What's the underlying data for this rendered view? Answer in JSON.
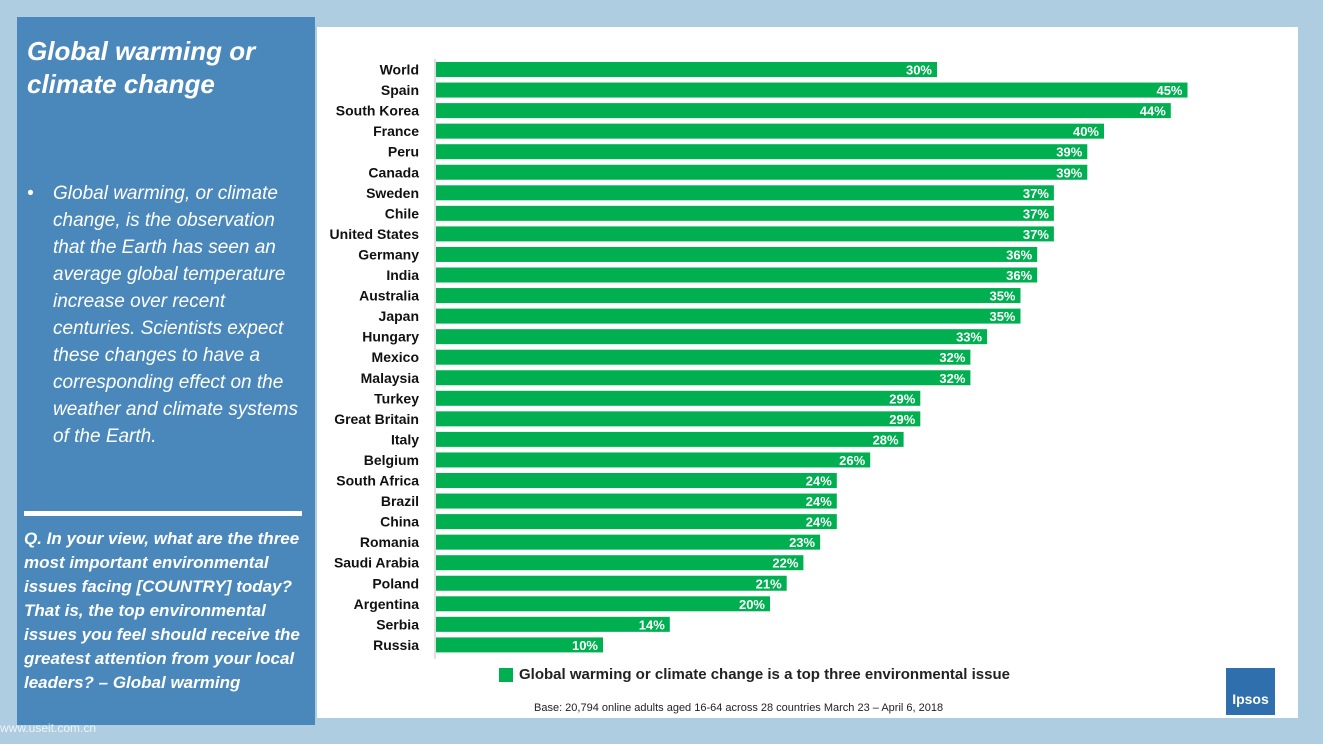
{
  "side": {
    "title": "Global warming or climate change",
    "bullet_symbol": "•",
    "bullet_text": "Global warming, or climate change, is the observation that the Earth has seen an average global temperature increase over recent centuries. Scientists expect these changes to have a corresponding effect on the weather and climate systems of the Earth.",
    "question": "Q. In your view, what are the three most important environmental issues facing [COUNTRY] today? That is, the top environmental issues you feel should receive the greatest attention from your local leaders? – Global warming"
  },
  "watermark": "www.useit.com.cn",
  "legend": {
    "label": "Global warming or climate change is a top three environmental issue"
  },
  "base_note": "Base: 20,794 online adults aged 16-64 across 28 countries  March 23 – April 6, 2018",
  "logo": {
    "text": "Ipsos"
  },
  "colors": {
    "bar": "#00b050",
    "side_panel": "#4a88bc",
    "background": "#aecde0"
  },
  "chart_data": {
    "type": "bar",
    "orientation": "horizontal",
    "categories": [
      "World",
      "Spain",
      "South Korea",
      "France",
      "Peru",
      "Canada",
      "Sweden",
      "Chile",
      "United States",
      "Germany",
      "India",
      "Australia",
      "Japan",
      "Hungary",
      "Mexico",
      "Malaysia",
      "Turkey",
      "Great Britain",
      "Italy",
      "Belgium",
      "South Africa",
      "Brazil",
      "China",
      "Romania",
      "Saudi Arabia",
      "Poland",
      "Argentina",
      "Serbia",
      "Russia"
    ],
    "values": [
      30,
      45,
      44,
      40,
      39,
      39,
      37,
      37,
      37,
      36,
      36,
      35,
      35,
      33,
      32,
      32,
      29,
      29,
      28,
      26,
      24,
      24,
      24,
      23,
      22,
      21,
      20,
      14,
      10
    ],
    "value_labels": [
      "30%",
      "45%",
      "44%",
      "40%",
      "39%",
      "39%",
      "37%",
      "37%",
      "37%",
      "36%",
      "36%",
      "35%",
      "35%",
      "33%",
      "32%",
      "32%",
      "29%",
      "29%",
      "28%",
      "26%",
      "24%",
      "24%",
      "24%",
      "23%",
      "22%",
      "21%",
      "20%",
      "14%",
      "10%"
    ],
    "xlim": [
      0,
      45
    ],
    "series_name": "Global warming or climate change is a top three environmental issue"
  }
}
